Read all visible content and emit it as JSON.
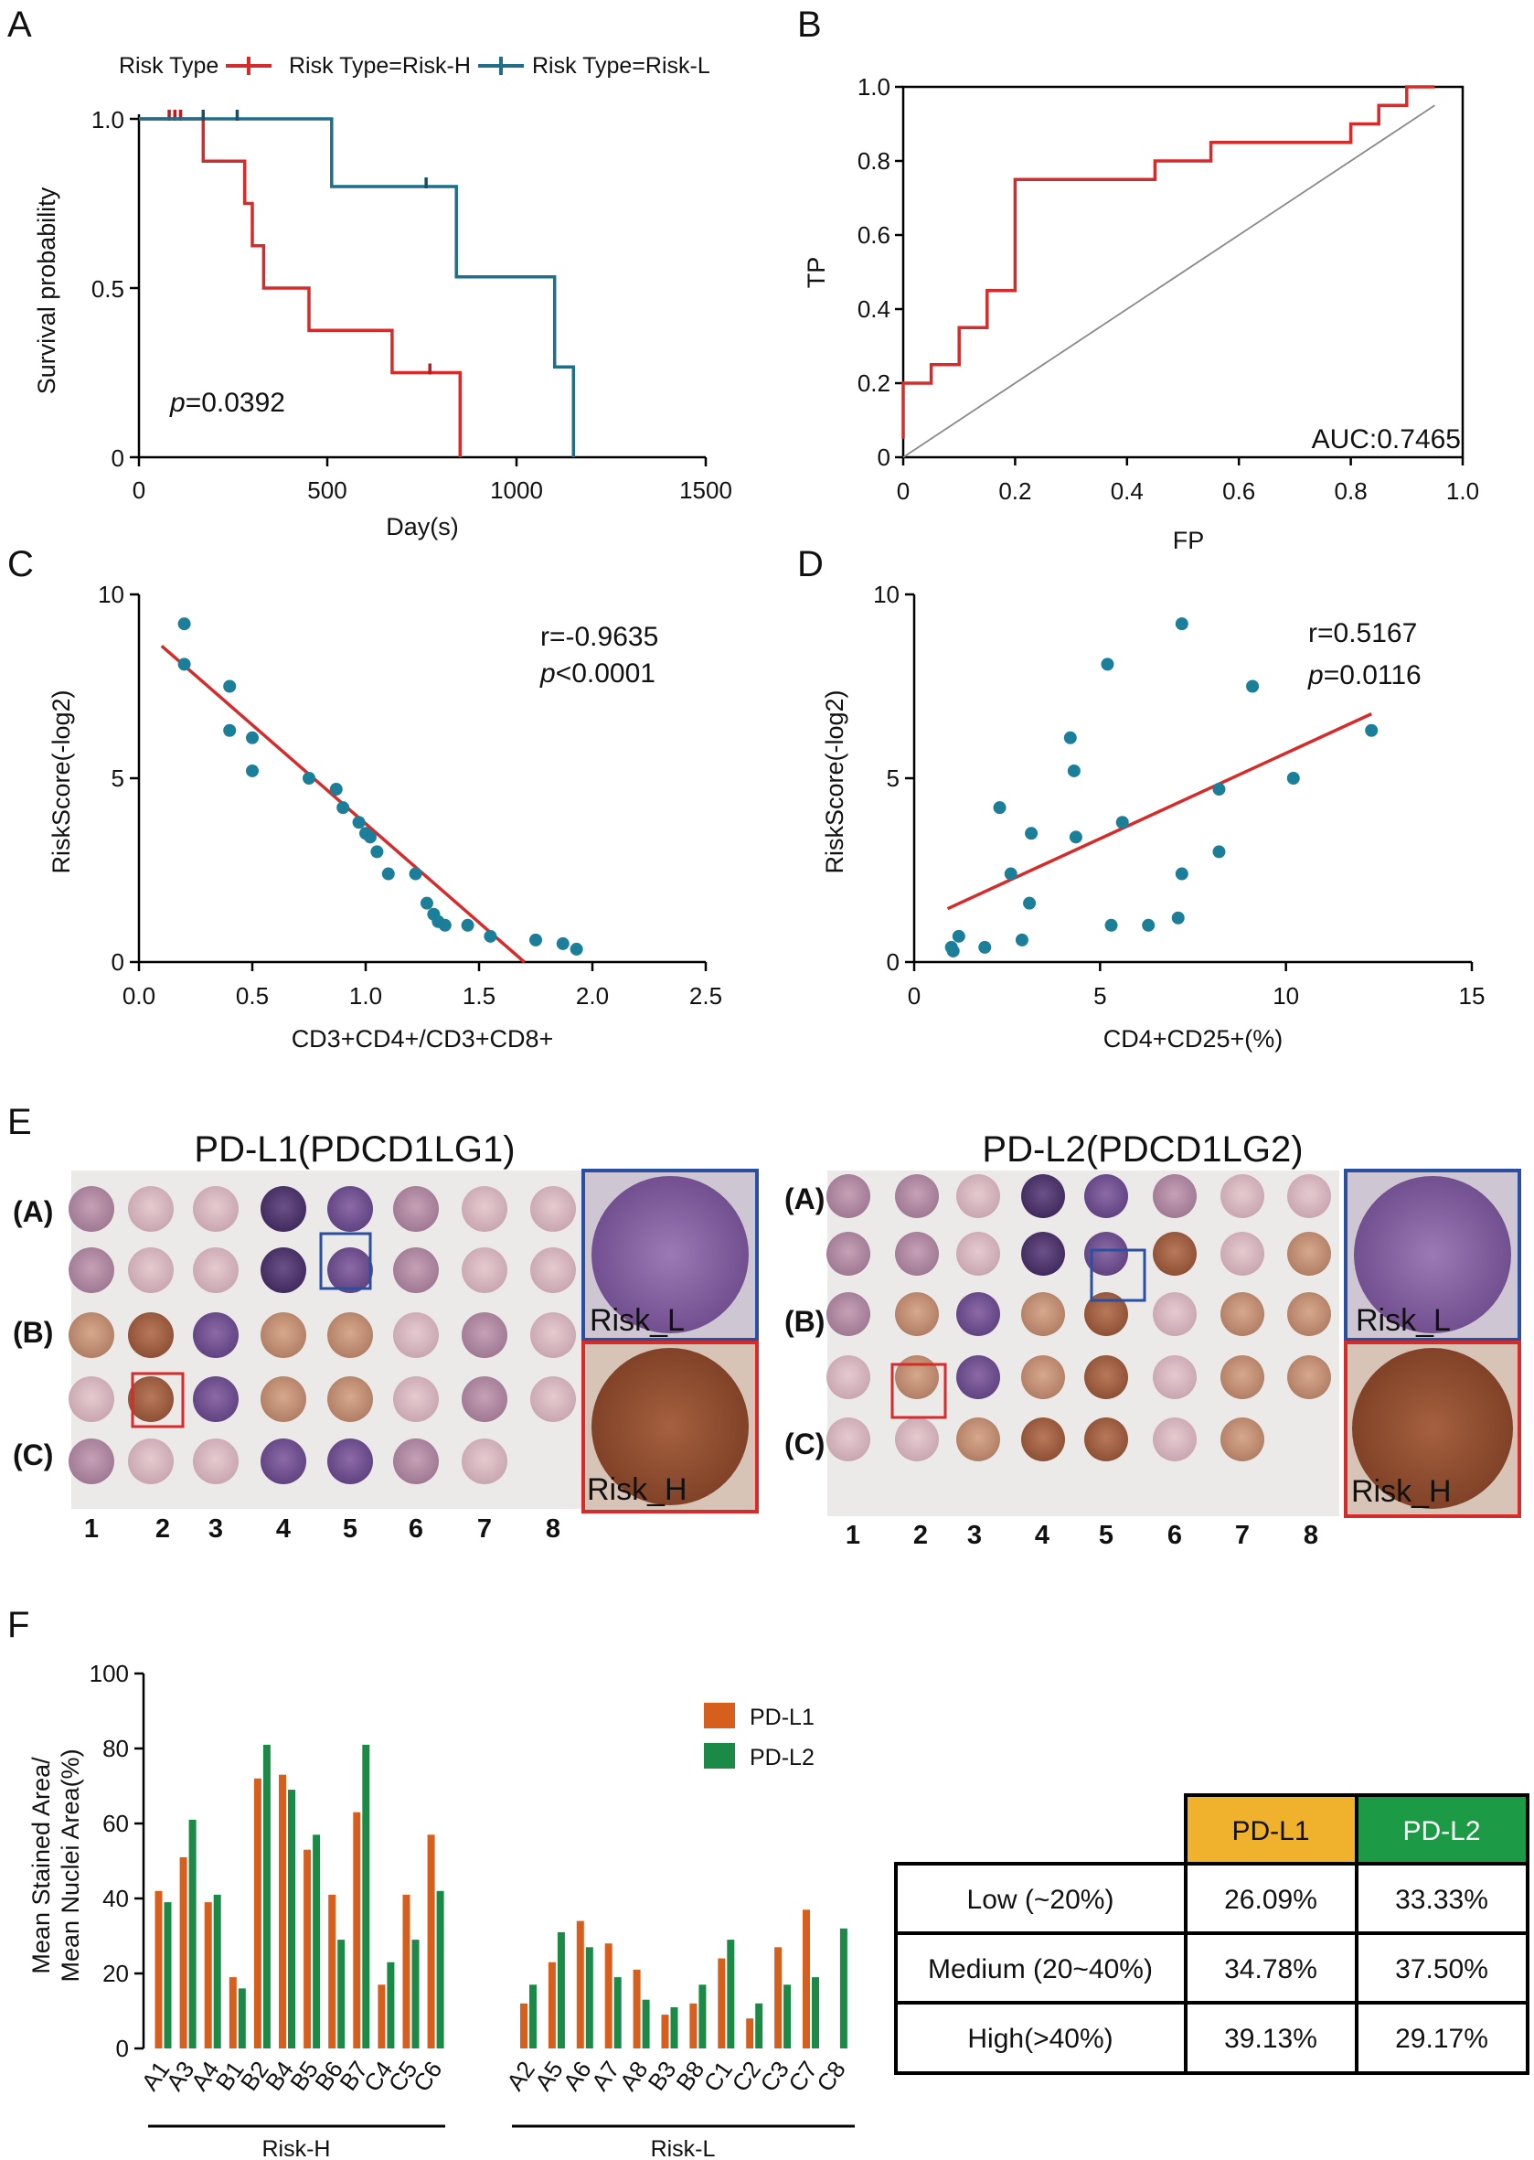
{
  "panel_letters": {
    "A": "A",
    "B": "B",
    "C": "C",
    "D": "D",
    "E": "E",
    "F": "F"
  },
  "colors": {
    "risk_h": "#d62b2b",
    "risk_l": "#1f6f8b",
    "pd_l1": "#d65f1e",
    "pd_l2": "#1c8a47",
    "dot": "#1c7f9a",
    "table_l1": "#f0b22c",
    "table_l2": "#1d9a45"
  },
  "chart_data": [
    {
      "id": "A",
      "type": "line",
      "subtype": "kaplan-meier",
      "legend": {
        "title": "Risk Type",
        "entries": [
          "Risk Type=Risk-H",
          "Risk Type=Risk-L"
        ]
      },
      "xlabel": "Day(s)",
      "ylabel": "Survival probability",
      "xlim": [
        0,
        1500
      ],
      "ylim": [
        0,
        1
      ],
      "xticks": [
        "0",
        "500",
        "1000",
        "1500"
      ],
      "yticks": [
        "0",
        "0.5",
        "1.0"
      ],
      "annotation": {
        "p_symbol": "p",
        "p_value": "=0.0392"
      },
      "series": [
        {
          "name": "Risk-H",
          "steps": [
            [
              0,
              1.0
            ],
            [
              170,
              1.0
            ],
            [
              170,
              0.875
            ],
            [
              280,
              0.875
            ],
            [
              280,
              0.75
            ],
            [
              300,
              0.75
            ],
            [
              300,
              0.625
            ],
            [
              330,
              0.625
            ],
            [
              330,
              0.5
            ],
            [
              450,
              0.5
            ],
            [
              450,
              0.375
            ],
            [
              670,
              0.375
            ],
            [
              670,
              0.25
            ],
            [
              850,
              0.25
            ],
            [
              850,
              0.0
            ]
          ],
          "censor": [
            [
              80,
              1.0
            ],
            [
              95,
              1.0
            ],
            [
              110,
              1.0
            ],
            [
              770,
              0.25
            ]
          ]
        },
        {
          "name": "Risk-L",
          "steps": [
            [
              0,
              1.0
            ],
            [
              510,
              1.0
            ],
            [
              510,
              0.8
            ],
            [
              840,
              0.8
            ],
            [
              840,
              0.533
            ],
            [
              1100,
              0.533
            ],
            [
              1100,
              0.267
            ],
            [
              1150,
              0.267
            ],
            [
              1150,
              0.0
            ]
          ],
          "censor": [
            [
              170,
              1.0
            ],
            [
              260,
              1.0
            ],
            [
              760,
              0.8
            ]
          ]
        }
      ]
    },
    {
      "id": "B",
      "type": "line",
      "subtype": "roc",
      "xlabel": "FP",
      "ylabel": "TP",
      "xlim": [
        0,
        1
      ],
      "ylim": [
        0,
        1
      ],
      "xticks": [
        "0",
        "0.2",
        "0.4",
        "0.6",
        "0.8",
        "1.0"
      ],
      "yticks": [
        "0",
        "0.2",
        "0.4",
        "0.6",
        "0.8",
        "1.0"
      ],
      "annotation": "AUC:0.7465",
      "series": [
        {
          "name": "ROC",
          "x": [
            0,
            0,
            0.05,
            0.05,
            0.1,
            0.1,
            0.15,
            0.15,
            0.2,
            0.2,
            0.45,
            0.45,
            0.55,
            0.55,
            0.8,
            0.8,
            0.85,
            0.85,
            0.9,
            0.9,
            0.95
          ],
          "y": [
            0.05,
            0.2,
            0.2,
            0.25,
            0.25,
            0.35,
            0.35,
            0.45,
            0.45,
            0.75,
            0.75,
            0.8,
            0.8,
            0.85,
            0.85,
            0.9,
            0.9,
            0.95,
            0.95,
            1.0,
            1.0
          ]
        }
      ],
      "reference_line": {
        "x": [
          0,
          0.95
        ],
        "y": [
          0,
          0.95
        ]
      }
    },
    {
      "id": "C",
      "type": "scatter",
      "xlabel": "CD3+CD4+/CD3+CD8+",
      "ylabel": "RiskScore(-log2)",
      "xlim": [
        0,
        2.5
      ],
      "ylim": [
        0,
        10
      ],
      "xticks": [
        "0.0",
        "0.5",
        "1.0",
        "1.5",
        "2.0",
        "2.5"
      ],
      "yticks": [
        "0",
        "5",
        "10"
      ],
      "annotation": {
        "r": "r=-0.9635",
        "p_symbol": "p",
        "p_value": "<0.0001"
      },
      "points": [
        [
          0.2,
          9.2
        ],
        [
          0.2,
          8.1
        ],
        [
          0.4,
          7.5
        ],
        [
          0.4,
          6.3
        ],
        [
          0.5,
          6.1
        ],
        [
          0.5,
          5.2
        ],
        [
          0.75,
          5.0
        ],
        [
          0.87,
          4.7
        ],
        [
          0.9,
          4.2
        ],
        [
          0.97,
          3.8
        ],
        [
          1.0,
          3.5
        ],
        [
          1.02,
          3.4
        ],
        [
          1.05,
          3.0
        ],
        [
          1.1,
          2.4
        ],
        [
          1.22,
          2.4
        ],
        [
          1.27,
          1.6
        ],
        [
          1.3,
          1.3
        ],
        [
          1.32,
          1.1
        ],
        [
          1.35,
          1.0
        ],
        [
          1.45,
          1.0
        ],
        [
          1.55,
          0.7
        ],
        [
          1.75,
          0.6
        ],
        [
          1.87,
          0.5
        ],
        [
          1.93,
          0.35
        ]
      ],
      "fit_line": {
        "x": [
          0.1,
          1.7
        ],
        "y": [
          8.6,
          0.0
        ]
      }
    },
    {
      "id": "D",
      "type": "scatter",
      "xlabel": "CD4+CD25+(%)",
      "ylabel": "RiskScore(-log2)",
      "xlim": [
        0,
        15
      ],
      "ylim": [
        0,
        10
      ],
      "xticks": [
        "0",
        "5",
        "10",
        "15"
      ],
      "yticks": [
        "0",
        "5",
        "10"
      ],
      "annotation": {
        "r": "r=0.5167",
        "p_symbol": "p",
        "p_value": "=0.0116"
      },
      "points": [
        [
          1.0,
          0.4
        ],
        [
          1.05,
          0.3
        ],
        [
          1.2,
          0.7
        ],
        [
          1.9,
          0.4
        ],
        [
          2.3,
          4.2
        ],
        [
          2.6,
          2.4
        ],
        [
          2.9,
          0.6
        ],
        [
          3.1,
          1.6
        ],
        [
          3.15,
          3.5
        ],
        [
          4.2,
          6.1
        ],
        [
          4.3,
          5.2
        ],
        [
          4.35,
          3.4
        ],
        [
          5.2,
          8.1
        ],
        [
          5.3,
          1.0
        ],
        [
          5.6,
          3.8
        ],
        [
          6.3,
          1.0
        ],
        [
          7.1,
          1.2
        ],
        [
          7.2,
          9.2
        ],
        [
          7.2,
          2.4
        ],
        [
          8.2,
          3.0
        ],
        [
          8.2,
          4.7
        ],
        [
          9.1,
          7.5
        ],
        [
          10.2,
          5.0
        ],
        [
          12.3,
          6.3
        ]
      ],
      "fit_line": {
        "x": [
          0.9,
          12.3
        ],
        "y": [
          1.45,
          6.75
        ]
      }
    },
    {
      "id": "F",
      "type": "bar",
      "ylabel_lines": [
        "Mean Stained  Area/",
        "Mean Nuclei Area(%)"
      ],
      "ylim": [
        0,
        100
      ],
      "yticks": [
        "0",
        "20",
        "40",
        "60",
        "80",
        "100"
      ],
      "groups": [
        {
          "label": "Risk-H"
        },
        {
          "label": "Risk-L"
        }
      ],
      "categories": [
        "A1",
        "A3",
        "A4",
        "B1",
        "B2",
        "B4",
        "B5",
        "B6",
        "B7",
        "C4",
        "C5",
        "C6",
        "A2",
        "A5",
        "A6",
        "A7",
        "A8",
        "B3",
        "B8",
        "C1",
        "C2",
        "C3",
        "C7",
        "C8"
      ],
      "series": [
        {
          "name": "PD-L1",
          "values": [
            42,
            51,
            39,
            19,
            72,
            73,
            53,
            41,
            63,
            17,
            41,
            57,
            12,
            23,
            34,
            28,
            21,
            9,
            12,
            24,
            8,
            27,
            37,
            0
          ]
        },
        {
          "name": "PD-L2",
          "values": [
            39,
            61,
            41,
            16,
            81,
            69,
            57,
            29,
            81,
            23,
            29,
            42,
            17,
            31,
            27,
            19,
            13,
            11,
            17,
            29,
            12,
            17,
            19,
            32
          ]
        }
      ]
    }
  ],
  "tissue": {
    "left_title": "PD-L1(PDCD1LG1)",
    "right_title": "PD-L2(PDCD1LG2)",
    "row_labels": [
      "(A)",
      "(B)",
      "(C)"
    ],
    "col_labels": [
      "1",
      "2",
      "3",
      "4",
      "5",
      "6",
      "7",
      "8"
    ],
    "inset_low": "Risk_L",
    "inset_high": "Risk_H"
  },
  "table": {
    "headers": [
      "",
      "PD-L1",
      "PD-L2"
    ],
    "rows": [
      {
        "label": "Low (~20%)",
        "l1": "26.09%",
        "l2": "33.33%"
      },
      {
        "label": "Medium (20~40%)",
        "l1": "34.78%",
        "l2": "37.50%"
      },
      {
        "label": "High(>40%)",
        "l1": "39.13%",
        "l2": "29.17%"
      }
    ]
  }
}
